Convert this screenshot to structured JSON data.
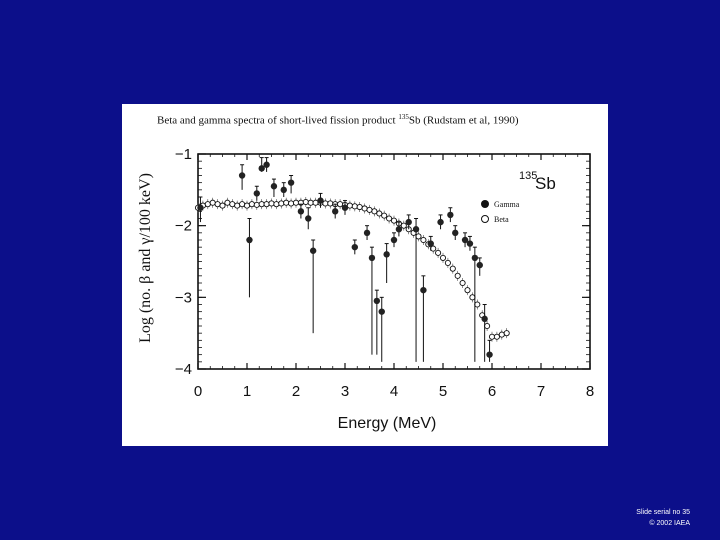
{
  "caption": {
    "prefix": "Beta and gamma spectra of short-lived fission product ",
    "isotope_mass": "135",
    "suffix": "Sb (Rudstam et al, 1990)"
  },
  "footer": {
    "serial": "Slide serial no 35",
    "copyright": "© 2002 IAEA"
  },
  "colors": {
    "background": "#0c0f8a",
    "figure": "#ffffff",
    "ink": "#111111"
  },
  "chart_data": {
    "type": "scatter",
    "title": "",
    "xlabel": "Energy (MeV)",
    "ylabel": "Log (no. β and γ/100 keV)",
    "xlim": [
      0,
      8
    ],
    "ylim": [
      -4,
      -1
    ],
    "xticks": [
      0,
      1,
      2,
      3,
      4,
      5,
      6,
      7,
      8
    ],
    "xtick_labels": [
      "0",
      "1",
      "2",
      "3",
      "4",
      "5",
      "6",
      "7",
      "8"
    ],
    "yticks": [
      -1,
      -2,
      -3,
      -4
    ],
    "ytick_labels": [
      "−1",
      "−2",
      "−3",
      "−4"
    ],
    "annotation_mass": "135",
    "annotation_symbol": "Sb",
    "legend": {
      "position": "top-right",
      "entries": [
        "Gamma",
        "Beta"
      ]
    },
    "series": [
      {
        "name": "Gamma",
        "marker": "filled-circle",
        "points": [
          {
            "x": 0.05,
            "y": -1.75,
            "lo": -1.95,
            "hi": -1.6
          },
          {
            "x": 0.9,
            "y": -1.3,
            "lo": -1.5,
            "hi": -1.15
          },
          {
            "x": 1.05,
            "y": -2.2,
            "lo": -3.0,
            "hi": -1.9
          },
          {
            "x": 1.2,
            "y": -1.55,
            "lo": -1.65,
            "hi": -1.45
          },
          {
            "x": 1.3,
            "y": -1.2,
            "lo": -1.25,
            "hi": -1.05
          },
          {
            "x": 1.4,
            "y": -1.15,
            "lo": -1.25,
            "hi": -1.05
          },
          {
            "x": 1.55,
            "y": -1.45,
            "lo": -1.6,
            "hi": -1.35
          },
          {
            "x": 1.75,
            "y": -1.5,
            "lo": -1.6,
            "hi": -1.4
          },
          {
            "x": 1.9,
            "y": -1.4,
            "lo": -1.55,
            "hi": -1.3
          },
          {
            "x": 2.1,
            "y": -1.8,
            "lo": -1.9,
            "hi": -1.7
          },
          {
            "x": 2.25,
            "y": -1.9,
            "lo": -2.05,
            "hi": -1.75
          },
          {
            "x": 2.35,
            "y": -2.35,
            "lo": -3.5,
            "hi": -2.2
          },
          {
            "x": 2.5,
            "y": -1.65,
            "lo": -1.75,
            "hi": -1.55
          },
          {
            "x": 2.8,
            "y": -1.8,
            "lo": -1.9,
            "hi": -1.7
          },
          {
            "x": 3.0,
            "y": -1.75,
            "lo": -1.85,
            "hi": -1.65
          },
          {
            "x": 3.2,
            "y": -2.3,
            "lo": -2.4,
            "hi": -2.2
          },
          {
            "x": 3.45,
            "y": -2.1,
            "lo": -2.2,
            "hi": -2.0
          },
          {
            "x": 3.55,
            "y": -2.45,
            "lo": -3.8,
            "hi": -2.3
          },
          {
            "x": 3.65,
            "y": -3.05,
            "lo": -3.8,
            "hi": -2.9
          },
          {
            "x": 3.75,
            "y": -3.2,
            "lo": -3.9,
            "hi": -3.0
          },
          {
            "x": 3.85,
            "y": -2.4,
            "lo": -2.8,
            "hi": -2.25
          },
          {
            "x": 4.0,
            "y": -2.2,
            "lo": -2.3,
            "hi": -2.1
          },
          {
            "x": 4.1,
            "y": -2.05,
            "lo": -2.15,
            "hi": -1.95
          },
          {
            "x": 4.3,
            "y": -1.95,
            "lo": -2.05,
            "hi": -1.85
          },
          {
            "x": 4.45,
            "y": -2.05,
            "lo": -3.9,
            "hi": -1.9
          },
          {
            "x": 4.6,
            "y": -2.9,
            "lo": -3.9,
            "hi": -2.7
          },
          {
            "x": 4.75,
            "y": -2.25,
            "lo": -2.35,
            "hi": -2.15
          },
          {
            "x": 4.95,
            "y": -1.95,
            "lo": -2.05,
            "hi": -1.85
          },
          {
            "x": 5.15,
            "y": -1.85,
            "lo": -1.95,
            "hi": -1.75
          },
          {
            "x": 5.25,
            "y": -2.1,
            "lo": -2.2,
            "hi": -2.0
          },
          {
            "x": 5.45,
            "y": -2.2,
            "lo": -2.3,
            "hi": -2.1
          },
          {
            "x": 5.55,
            "y": -2.25,
            "lo": -2.35,
            "hi": -2.15
          },
          {
            "x": 5.65,
            "y": -2.45,
            "lo": -3.9,
            "hi": -2.3
          },
          {
            "x": 5.75,
            "y": -2.55,
            "lo": -2.7,
            "hi": -2.45
          },
          {
            "x": 5.85,
            "y": -3.3,
            "lo": -3.9,
            "hi": -3.1
          },
          {
            "x": 5.95,
            "y": -3.8,
            "lo": -3.9,
            "hi": -3.6
          }
        ]
      },
      {
        "name": "Beta",
        "marker": "open-circle",
        "points": [
          {
            "x": 0.0,
            "y": -1.75
          },
          {
            "x": 0.1,
            "y": -1.72
          },
          {
            "x": 0.2,
            "y": -1.7
          },
          {
            "x": 0.3,
            "y": -1.68
          },
          {
            "x": 0.4,
            "y": -1.7
          },
          {
            "x": 0.5,
            "y": -1.72
          },
          {
            "x": 0.6,
            "y": -1.68
          },
          {
            "x": 0.7,
            "y": -1.7
          },
          {
            "x": 0.8,
            "y": -1.72
          },
          {
            "x": 0.9,
            "y": -1.7
          },
          {
            "x": 1.0,
            "y": -1.72
          },
          {
            "x": 1.1,
            "y": -1.7
          },
          {
            "x": 1.2,
            "y": -1.71
          },
          {
            "x": 1.3,
            "y": -1.7
          },
          {
            "x": 1.4,
            "y": -1.7
          },
          {
            "x": 1.5,
            "y": -1.69
          },
          {
            "x": 1.6,
            "y": -1.7
          },
          {
            "x": 1.7,
            "y": -1.69
          },
          {
            "x": 1.8,
            "y": -1.68
          },
          {
            "x": 1.9,
            "y": -1.69
          },
          {
            "x": 2.0,
            "y": -1.68
          },
          {
            "x": 2.1,
            "y": -1.68
          },
          {
            "x": 2.2,
            "y": -1.67
          },
          {
            "x": 2.3,
            "y": -1.68
          },
          {
            "x": 2.4,
            "y": -1.68
          },
          {
            "x": 2.5,
            "y": -1.68
          },
          {
            "x": 2.6,
            "y": -1.69
          },
          {
            "x": 2.7,
            "y": -1.69
          },
          {
            "x": 2.8,
            "y": -1.7
          },
          {
            "x": 2.9,
            "y": -1.7
          },
          {
            "x": 3.0,
            "y": -1.71
          },
          {
            "x": 3.1,
            "y": -1.72
          },
          {
            "x": 3.2,
            "y": -1.73
          },
          {
            "x": 3.3,
            "y": -1.74
          },
          {
            "x": 3.4,
            "y": -1.76
          },
          {
            "x": 3.5,
            "y": -1.78
          },
          {
            "x": 3.6,
            "y": -1.8
          },
          {
            "x": 3.7,
            "y": -1.83
          },
          {
            "x": 3.8,
            "y": -1.86
          },
          {
            "x": 3.9,
            "y": -1.9
          },
          {
            "x": 4.0,
            "y": -1.93
          },
          {
            "x": 4.1,
            "y": -1.97
          },
          {
            "x": 4.2,
            "y": -2.0
          },
          {
            "x": 4.3,
            "y": -2.05
          },
          {
            "x": 4.4,
            "y": -2.1
          },
          {
            "x": 4.5,
            "y": -2.15
          },
          {
            "x": 4.6,
            "y": -2.2
          },
          {
            "x": 4.7,
            "y": -2.26
          },
          {
            "x": 4.8,
            "y": -2.32
          },
          {
            "x": 4.9,
            "y": -2.38
          },
          {
            "x": 5.0,
            "y": -2.45
          },
          {
            "x": 5.1,
            "y": -2.52
          },
          {
            "x": 5.2,
            "y": -2.6
          },
          {
            "x": 5.3,
            "y": -2.7
          },
          {
            "x": 5.4,
            "y": -2.8
          },
          {
            "x": 5.5,
            "y": -2.9
          },
          {
            "x": 5.6,
            "y": -3.0
          },
          {
            "x": 5.7,
            "y": -3.1
          },
          {
            "x": 5.8,
            "y": -3.25
          },
          {
            "x": 5.9,
            "y": -3.4
          },
          {
            "x": 6.0,
            "y": -3.55
          },
          {
            "x": 6.1,
            "y": -3.55
          },
          {
            "x": 6.2,
            "y": -3.52
          },
          {
            "x": 6.3,
            "y": -3.5
          }
        ]
      }
    ]
  }
}
